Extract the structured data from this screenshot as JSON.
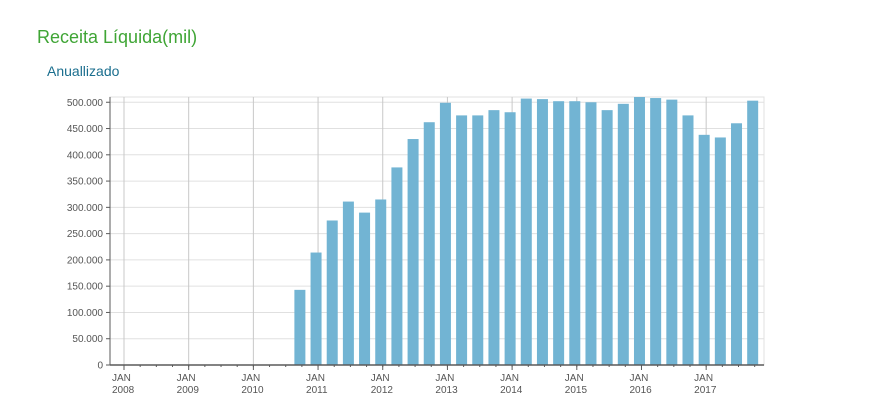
{
  "header": {
    "title": "Receita Líquida(mil)",
    "subtitle": "Anuallizado"
  },
  "colors": {
    "title": "#3fa535",
    "subtitle": "#1a6e8e",
    "bar": "#72b4d3",
    "grid": "#e0e0e0",
    "year_grid": "#c8c8c8",
    "axis": "#5a5a5a"
  },
  "chart_data": {
    "type": "bar",
    "title": "Receita Líquida(mil)",
    "subtitle": "Anuallizado",
    "xlabel": "",
    "ylabel": "",
    "ylim": [
      0,
      510000
    ],
    "yticks": [
      0,
      50000,
      100000,
      150000,
      200000,
      250000,
      300000,
      350000,
      400000,
      450000,
      500000
    ],
    "ytick_labels": [
      "0",
      "50.000",
      "100.000",
      "150.000",
      "200.000",
      "250.000",
      "300.000",
      "350.000",
      "400.000",
      "450.000",
      "500.000"
    ],
    "xtick_labels": [
      {
        "line1": "JAN",
        "line2": "2008",
        "q": 0
      },
      {
        "line1": "JAN",
        "line2": "2009",
        "q": 4
      },
      {
        "line1": "JAN",
        "line2": "2010",
        "q": 8
      },
      {
        "line1": "JAN",
        "line2": "2011",
        "q": 12
      },
      {
        "line1": "JAN",
        "line2": "2012",
        "q": 16
      },
      {
        "line1": "JAN",
        "line2": "2013",
        "q": 20
      },
      {
        "line1": "JAN",
        "line2": "2014",
        "q": 24
      },
      {
        "line1": "JAN",
        "line2": "2015",
        "q": 28
      },
      {
        "line1": "JAN",
        "line2": "2016",
        "q": 32
      },
      {
        "line1": "JAN",
        "line2": "2017",
        "q": 36
      }
    ],
    "quarters_total": 40,
    "grid": true,
    "legend": "none",
    "bars": [
      {
        "q": 11,
        "value": 143000
      },
      {
        "q": 12,
        "value": 214000
      },
      {
        "q": 13,
        "value": 275000
      },
      {
        "q": 14,
        "value": 311000
      },
      {
        "q": 15,
        "value": 290000
      },
      {
        "q": 16,
        "value": 315000
      },
      {
        "q": 17,
        "value": 376000
      },
      {
        "q": 18,
        "value": 430000
      },
      {
        "q": 19,
        "value": 462000
      },
      {
        "q": 20,
        "value": 499000
      },
      {
        "q": 21,
        "value": 475000
      },
      {
        "q": 22,
        "value": 475000
      },
      {
        "q": 23,
        "value": 485000
      },
      {
        "q": 24,
        "value": 481000
      },
      {
        "q": 25,
        "value": 507000
      },
      {
        "q": 26,
        "value": 506000
      },
      {
        "q": 27,
        "value": 502000
      },
      {
        "q": 28,
        "value": 502000
      },
      {
        "q": 29,
        "value": 500000
      },
      {
        "q": 30,
        "value": 485000
      },
      {
        "q": 31,
        "value": 497000
      },
      {
        "q": 32,
        "value": 510000
      },
      {
        "q": 33,
        "value": 508000
      },
      {
        "q": 34,
        "value": 505000
      },
      {
        "q": 35,
        "value": 475000
      },
      {
        "q": 36,
        "value": 438000
      },
      {
        "q": 37,
        "value": 433000
      },
      {
        "q": 38,
        "value": 460000
      },
      {
        "q": 39,
        "value": 503000
      }
    ]
  }
}
